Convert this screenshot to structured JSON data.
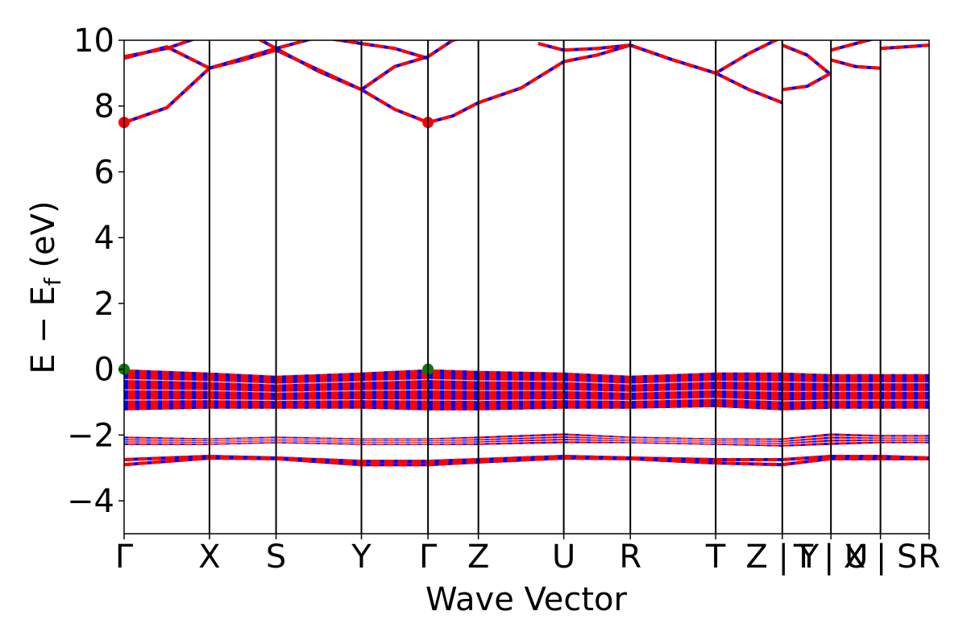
{
  "chart_data": {
    "type": "line",
    "title": "",
    "xlabel": "Wave Vector",
    "ylabel": "E − E_f (eV)",
    "ylabel_parts": {
      "main": "E − E",
      "sub": "f",
      "unit": " (eV)"
    },
    "ylim": [
      -5,
      10
    ],
    "yticks": [
      -4,
      -2,
      0,
      2,
      4,
      6,
      8,
      10
    ],
    "ytick_labels": [
      "−4",
      "−2",
      "0",
      "2",
      "4",
      "6",
      "8",
      "10"
    ],
    "xlim": [
      0,
      9.43
    ],
    "kpath": [
      {
        "x": 0.0,
        "label": "Γ"
      },
      {
        "x": 1.0,
        "label": "X"
      },
      {
        "x": 1.78,
        "label": "S"
      },
      {
        "x": 2.78,
        "label": "Y"
      },
      {
        "x": 3.56,
        "label": "Γ"
      },
      {
        "x": 4.15,
        "label": "Z"
      },
      {
        "x": 5.15,
        "label": "U"
      },
      {
        "x": 5.93,
        "label": "R"
      },
      {
        "x": 6.93,
        "label": "T"
      },
      {
        "x": 7.71,
        "label": "Z | Y"
      },
      {
        "x": 8.28,
        "label": "T | U"
      },
      {
        "x": 8.86,
        "label": "X | S"
      },
      {
        "x": 9.43,
        "label": "R"
      }
    ],
    "grid": false,
    "legend": "none",
    "colors": {
      "line_main": "#0000ff",
      "line_dash": "#ff0000",
      "cbm_marker": "#ff0000",
      "vbm_marker": "#008000",
      "axis": "#000000"
    },
    "markers": {
      "cbm": [
        {
          "x": 0.0,
          "y": 7.5
        },
        {
          "x": 3.56,
          "y": 7.5
        }
      ],
      "vbm": [
        {
          "x": 0.0,
          "y": 0.0
        },
        {
          "x": 3.56,
          "y": 0.0
        }
      ]
    },
    "series": [
      {
        "x": [
          0,
          0.5,
          1.0,
          1.39,
          1.78,
          2.28,
          2.78,
          3.17,
          3.56,
          3.85,
          4.15,
          4.65,
          5.15,
          5.54,
          5.93,
          6.43,
          6.93,
          7.32,
          7.71
        ],
        "values": [
          7.5,
          7.95,
          9.15,
          9.45,
          9.75,
          9.05,
          8.5,
          7.9,
          7.5,
          7.7,
          8.1,
          8.55,
          9.35,
          9.55,
          9.85,
          9.4,
          9.0,
          8.5,
          8.1
        ]
      },
      {
        "x": [
          0,
          0.5,
          1.0,
          1.39,
          1.78,
          2.28,
          2.78,
          3.17,
          3.56,
          3.85,
          4.15
        ],
        "values": [
          9.45,
          9.8,
          9.15,
          9.4,
          9.7,
          9.1,
          8.5,
          9.2,
          9.5,
          10.0,
          10.2
        ]
      },
      {
        "x": [
          0,
          0.5,
          1.0,
          1.39,
          1.78,
          2.28,
          2.78,
          3.17,
          3.56
        ],
        "values": [
          9.5,
          9.75,
          10.2,
          10.3,
          9.75,
          10.1,
          9.9,
          9.75,
          9.45
        ]
      },
      {
        "x": [
          4.85,
          5.15,
          5.54,
          5.93,
          6.43,
          6.93,
          7.32,
          7.71
        ],
        "values": [
          9.9,
          9.7,
          9.75,
          9.85,
          9.4,
          9.0,
          9.6,
          10.1
        ]
      },
      {
        "x": [
          7.71,
          8.0,
          8.28
        ],
        "values": [
          8.5,
          8.6,
          9.0
        ]
      },
      {
        "x": [
          7.71,
          8.0,
          8.28
        ],
        "values": [
          9.85,
          9.55,
          8.95
        ]
      },
      {
        "x": [
          8.28,
          8.57,
          8.86
        ],
        "values": [
          9.7,
          9.9,
          10.1
        ]
      },
      {
        "x": [
          8.28,
          8.57,
          8.86
        ],
        "values": [
          9.4,
          9.2,
          9.15
        ]
      },
      {
        "x": [
          8.86,
          9.15,
          9.43
        ],
        "values": [
          9.75,
          9.8,
          9.85
        ]
      },
      {
        "x": [
          0,
          1.0,
          1.78,
          2.78,
          3.56,
          4.15,
          5.15,
          5.93,
          6.93,
          7.71,
          8.28,
          8.86,
          9.43
        ],
        "values": [
          -2.75,
          -2.65,
          -2.7,
          -2.8,
          -2.8,
          -2.75,
          -2.65,
          -2.7,
          -2.75,
          -2.75,
          -2.65,
          -2.65,
          -2.7
        ]
      },
      {
        "x": [
          0,
          1.0,
          1.78,
          2.78,
          3.56,
          4.15,
          5.15,
          5.93,
          6.93,
          7.71,
          8.28,
          8.86,
          9.43
        ],
        "values": [
          -2.9,
          -2.7,
          -2.72,
          -2.9,
          -2.9,
          -2.82,
          -2.7,
          -2.72,
          -2.85,
          -2.9,
          -2.72,
          -2.72,
          -2.72
        ]
      }
    ],
    "valence_bands": [
      {
        "top": [
          0.0,
          -0.1,
          -0.2,
          -0.1,
          0.0,
          -0.05,
          -0.1,
          -0.2,
          -0.1,
          -0.1,
          -0.15,
          -0.15,
          -0.15
        ],
        "bottom": [
          -1.25,
          -1.2,
          -1.2,
          -1.2,
          -1.25,
          -1.25,
          -1.2,
          -1.2,
          -1.15,
          -1.25,
          -1.2,
          -1.2,
          -1.2
        ]
      },
      {
        "top": [
          -2.05,
          -2.1,
          -2.05,
          -2.1,
          -2.1,
          -2.05,
          -1.95,
          -2.05,
          -2.1,
          -2.1,
          -1.95,
          -2.0,
          -2.0
        ],
        "bottom": [
          -2.3,
          -2.3,
          -2.25,
          -2.3,
          -2.3,
          -2.3,
          -2.25,
          -2.25,
          -2.3,
          -2.35,
          -2.3,
          -2.25,
          -2.25
        ]
      }
    ]
  }
}
